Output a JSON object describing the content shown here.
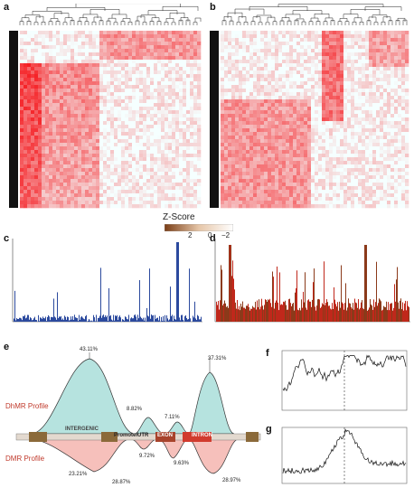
{
  "panels": {
    "a": "a",
    "b": "b",
    "c": "c",
    "d": "d",
    "e": "e",
    "f": "f",
    "g": "g"
  },
  "zscore": {
    "title": "Z-Score",
    "ticks": [
      "2",
      "0",
      "−2"
    ]
  },
  "profile": {
    "dhmr_label": "DhMR Profile",
    "dmr_label": "DMR Profile",
    "regions": {
      "intergenic": "INTERGENIC",
      "promoter": "Promoter",
      "utr": "UTR",
      "exon": "EXON",
      "intron": "INTRON"
    },
    "dhmr_pcts": [
      "43.11%",
      "8.82%",
      "7.11%",
      "37.31%"
    ],
    "dmr_pcts": [
      "23.21%",
      "28.87%",
      "9.72%",
      "9.63%",
      "28.97%"
    ]
  },
  "colors": {
    "heat_high": "#d7191c",
    "heat_low": "#ffffff",
    "blue_bars": "#2c4a9e",
    "red_bars": "#c0281b",
    "brown_bars": "#8b3a1a",
    "teal_fill": "#a8dcd8",
    "pink_fill": "#f3a7a2"
  }
}
